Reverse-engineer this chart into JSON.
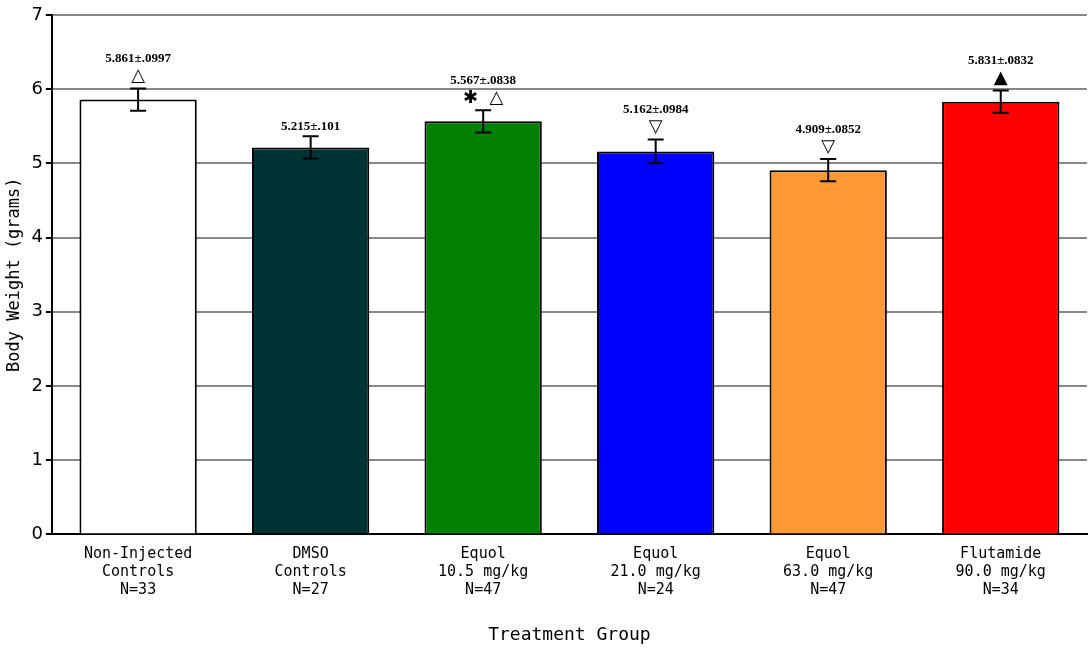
{
  "chart_data": {
    "type": "bar",
    "xlabel": "Treatment Group",
    "ylabel": "Body Weight (grams)",
    "categories": [
      "Non-Injected\nControls\nN=33",
      "DMSO\nControls\nN=27",
      "Equol\n10.5 mg/kg\nN=47",
      "Equol\n21.0 mg/kg\nN=24",
      "Equol\n63.0 mg/kg\nN=47",
      "Flutamide\n90.0 mg/kg\nN=34"
    ],
    "values": [
      5.861,
      5.215,
      5.567,
      5.162,
      4.909,
      5.831
    ],
    "colors": [
      "#ffffff",
      "#003333",
      "#007f00",
      "#0000ff",
      "#ff9933",
      "#ff0000"
    ],
    "errors": [
      0.15,
      0.15,
      0.15,
      0.16,
      0.15,
      0.15
    ],
    "value_labels": [
      "5.861±.0997",
      "5.215±.101",
      "5.567±.0838",
      "5.162±.0984",
      "4.909±.0852",
      "5.831±.0832"
    ],
    "annotations": [
      {
        "text": "△",
        "x": "Non-Injected\nControls\nN=33",
        "y": 5.861
      },
      {
        "text": "✱  △",
        "x": "Equol\n10.5 mg/kg\nN=47",
        "y": 5.567
      },
      {
        "text": "▽",
        "x": "Equol\n21.0 mg/kg\nN=24",
        "y": 5.162
      },
      {
        "text": "▽",
        "x": "Equol\n63.0 mg/kg\nN=47",
        "y": 4.909
      },
      {
        "text": "▲",
        "x": "Flutamide\n90.0 mg/kg\nN=34",
        "y": 5.831
      }
    ],
    "ylim": [
      0,
      7
    ],
    "yticks": [
      0,
      1,
      2,
      3,
      4,
      5,
      6,
      7
    ],
    "grid": "y",
    "legend": false
  }
}
